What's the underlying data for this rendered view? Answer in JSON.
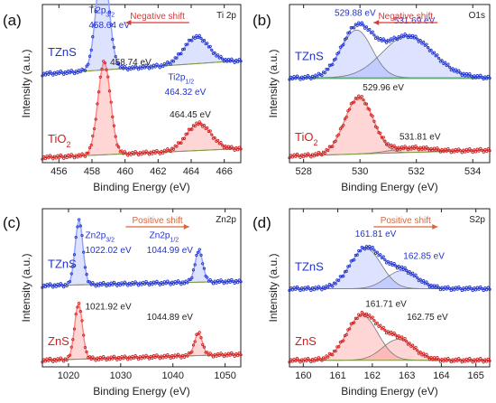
{
  "panels": [
    {
      "id": "a",
      "panel_label": "(a)",
      "corner_label": "Ti 2p",
      "shift_text": "Negative shift",
      "shift_dir": "left",
      "shift_color": "#d23c3c",
      "xlabel": "Binding Energy (eV)",
      "ylabel": "Intensity (a.u.)",
      "xlim": [
        455,
        467
      ],
      "xticks": [
        456,
        458,
        460,
        462,
        464,
        466
      ],
      "series": [
        {
          "name": "TZnS",
          "color": "#2233cc",
          "fit_color": "#8fa0ff",
          "fill_color": "rgba(120,140,255,0.25)",
          "offset": 0.5,
          "baseline": {
            "type": "ramp",
            "y0": 0.07,
            "y1": 0.16
          },
          "peaks": [
            {
              "center": 458.64,
              "height": 0.73,
              "width": 0.38
            },
            {
              "center": 464.32,
              "height": 0.18,
              "width": 0.75
            }
          ],
          "labels": [
            {
              "text": "Ti2p",
              "sub": "3/2",
              "x": 457.8,
              "y": 0.98
            },
            {
              "text": "458.64 eV",
              "x": 457.8,
              "y": 0.88
            },
            {
              "text": "Ti2p",
              "sub": "1/2",
              "x": 462.6,
              "y": 0.53
            },
            {
              "text": "464.32 eV",
              "x": 462.4,
              "y": 0.43
            }
          ]
        },
        {
          "name": "TiO",
          "name_sub": "2",
          "color": "#cc2222",
          "fit_color": "#ff8080",
          "fill_color": "rgba(255,120,120,0.3)",
          "offset": 0.0,
          "baseline": {
            "type": "ramp",
            "y0": 0.01,
            "y1": 0.07
          },
          "peaks": [
            {
              "center": 458.74,
              "height": 0.62,
              "width": 0.38
            },
            {
              "center": 464.45,
              "height": 0.18,
              "width": 0.75
            }
          ],
          "labels": [
            {
              "text": "458.74 eV",
              "x": 459.1,
              "y": 0.63
            },
            {
              "text": "464.45 eV",
              "x": 462.7,
              "y": 0.28
            }
          ]
        }
      ]
    },
    {
      "id": "b",
      "panel_label": "(b)",
      "corner_label": "O1s",
      "shift_text": "Negative shift",
      "shift_dir": "left",
      "shift_color": "#d23c3c",
      "xlabel": "Binding Energy (eV)",
      "ylabel": "Intensity (a.u.)",
      "xlim": [
        527.5,
        534.6
      ],
      "xticks": [
        528,
        530,
        532,
        534
      ],
      "divider": 0.54,
      "series": [
        {
          "name": "TZnS",
          "color": "#2233cc",
          "fit_color": "#8fa0ff",
          "fill_color": "rgba(120,140,255,0.25)",
          "offset": 0.54,
          "baseline": {
            "type": "flat",
            "y0": 0.005,
            "y1": 0.005
          },
          "peaks": [
            {
              "center": 529.88,
              "height": 0.32,
              "width": 0.55
            },
            {
              "center": 531.69,
              "height": 0.28,
              "width": 0.9
            }
          ],
          "labels": [
            {
              "text": "529.88 eV",
              "x": 529.1,
              "y": 0.96
            },
            {
              "text": "531.69 eV",
              "x": 531.2,
              "y": 0.91
            }
          ]
        },
        {
          "name": "TiO",
          "name_sub": "2",
          "color": "#cc2222",
          "fit_color": "#ff8080",
          "fill_color": "rgba(255,120,120,0.3)",
          "offset": 0.0,
          "baseline": {
            "type": "ramp",
            "y0": 0.02,
            "y1": 0.06
          },
          "peaks": [
            {
              "center": 529.96,
              "height": 0.38,
              "width": 0.5
            },
            {
              "center": 531.81,
              "height": 0.03,
              "width": 0.7
            }
          ],
          "labels": [
            {
              "text": "529.96 eV",
              "x": 530.1,
              "y": 0.46
            },
            {
              "text": "531.81 eV",
              "x": 531.4,
              "y": 0.13
            }
          ]
        }
      ]
    },
    {
      "id": "c",
      "panel_label": "(c)",
      "corner_label": "Zn2p",
      "shift_text": "Positive shift",
      "shift_dir": "right",
      "shift_color": "#d9643c",
      "xlabel": "Binding Energy (eV)",
      "ylabel": "Intensity (a.u.)",
      "xlim": [
        1015,
        1053
      ],
      "xticks": [
        1020,
        1030,
        1040,
        1050
      ],
      "series": [
        {
          "name": "TZnS",
          "color": "#2233cc",
          "fit_color": "#8fa0ff",
          "fill_color": "rgba(120,140,255,0.25)",
          "offset": 0.52,
          "baseline": {
            "type": "ramp",
            "y0": 0.0,
            "y1": 0.03
          },
          "peaks": [
            {
              "center": 1022.02,
              "height": 0.43,
              "width": 0.75
            },
            {
              "center": 1044.99,
              "height": 0.21,
              "width": 0.75
            }
          ],
          "labels": [
            {
              "text": "Zn2p",
              "sub": "3/2",
              "x": 1023.2,
              "y": 0.84
            },
            {
              "text": "1022.02 eV",
              "x": 1023.2,
              "y": 0.74
            },
            {
              "text": "Zn2p",
              "sub": "1/2",
              "x": 1035.5,
              "y": 0.84
            },
            {
              "text": "1044.99 eV",
              "x": 1035.0,
              "y": 0.74
            }
          ]
        },
        {
          "name": "ZnS",
          "color": "#cc2222",
          "fit_color": "#ff8080",
          "fill_color": "rgba(255,120,120,0.3)",
          "offset": 0.0,
          "baseline": {
            "type": "ramp",
            "y0": 0.02,
            "y1": 0.06
          },
          "peaks": [
            {
              "center": 1021.92,
              "height": 0.37,
              "width": 0.75
            },
            {
              "center": 1044.89,
              "height": 0.15,
              "width": 0.75
            }
          ],
          "labels": [
            {
              "text": "1021.92 eV",
              "x": 1023.2,
              "y": 0.36
            },
            {
              "text": "1044.89 eV",
              "x": 1035.0,
              "y": 0.29
            }
          ]
        }
      ]
    },
    {
      "id": "d",
      "panel_label": "(d)",
      "corner_label": "S2p",
      "shift_text": "Positive shift",
      "shift_dir": "right",
      "shift_color": "#d9643c",
      "xlabel": "Binding Energy (eV)",
      "ylabel": "Intensity (a.u.)",
      "xlim": [
        159.6,
        165.4
      ],
      "xticks": [
        160,
        161,
        162,
        163,
        164,
        165
      ],
      "series": [
        {
          "name": "TZnS",
          "color": "#2233cc",
          "fit_color": "#8fa0ff",
          "fill_color": "rgba(120,140,255,0.25)",
          "offset": 0.5,
          "baseline": {
            "type": "flat",
            "y0": 0.0,
            "y1": 0.0
          },
          "peaks": [
            {
              "center": 161.81,
              "height": 0.27,
              "width": 0.45
            },
            {
              "center": 162.85,
              "height": 0.12,
              "width": 0.45
            }
          ],
          "labels": [
            {
              "text": "161.81 eV",
              "x": 161.5,
              "y": 0.85
            },
            {
              "text": "162.85 eV",
              "x": 162.9,
              "y": 0.7
            }
          ]
        },
        {
          "name": "ZnS",
          "color": "#cc2222",
          "fit_color": "#ff8080",
          "fill_color": "rgba(255,120,120,0.3)",
          "offset": 0.0,
          "baseline": {
            "type": "flat",
            "y0": 0.02,
            "y1": 0.02
          },
          "peaks": [
            {
              "center": 161.71,
              "height": 0.3,
              "width": 0.45
            },
            {
              "center": 162.75,
              "height": 0.14,
              "width": 0.45
            }
          ],
          "labels": [
            {
              "text": "161.71 eV",
              "x": 161.8,
              "y": 0.38
            },
            {
              "text": "162.75 eV",
              "x": 163.0,
              "y": 0.29
            }
          ]
        }
      ]
    }
  ],
  "chart_data": [
    {
      "type": "line",
      "title": "Ti 2p",
      "xlabel": "Binding Energy (eV)",
      "ylabel": "Intensity (a.u.)",
      "xlim": [
        455,
        467
      ],
      "series": [
        {
          "name": "TZnS",
          "peaks_eV": [
            458.64,
            464.32
          ]
        },
        {
          "name": "TiO2",
          "peaks_eV": [
            458.74,
            464.45
          ]
        }
      ],
      "annotation": "Negative shift"
    },
    {
      "type": "line",
      "title": "O1s",
      "xlabel": "Binding Energy (eV)",
      "ylabel": "Intensity (a.u.)",
      "xlim": [
        527.5,
        534.6
      ],
      "series": [
        {
          "name": "TZnS",
          "peaks_eV": [
            529.88,
            531.69
          ]
        },
        {
          "name": "TiO2",
          "peaks_eV": [
            529.96,
            531.81
          ]
        }
      ],
      "annotation": "Negative shift"
    },
    {
      "type": "line",
      "title": "Zn2p",
      "xlabel": "Binding Energy (eV)",
      "ylabel": "Intensity (a.u.)",
      "xlim": [
        1015,
        1053
      ],
      "series": [
        {
          "name": "TZnS",
          "peaks_eV": [
            1022.02,
            1044.99
          ]
        },
        {
          "name": "ZnS",
          "peaks_eV": [
            1021.92,
            1044.89
          ]
        }
      ],
      "annotation": "Positive shift"
    },
    {
      "type": "line",
      "title": "S2p",
      "xlabel": "Binding Energy (eV)",
      "ylabel": "Intensity (a.u.)",
      "xlim": [
        159.6,
        165.4
      ],
      "series": [
        {
          "name": "TZnS",
          "peaks_eV": [
            161.81,
            162.85
          ]
        },
        {
          "name": "ZnS",
          "peaks_eV": [
            161.71,
            162.75
          ]
        }
      ],
      "annotation": "Positive shift"
    }
  ]
}
